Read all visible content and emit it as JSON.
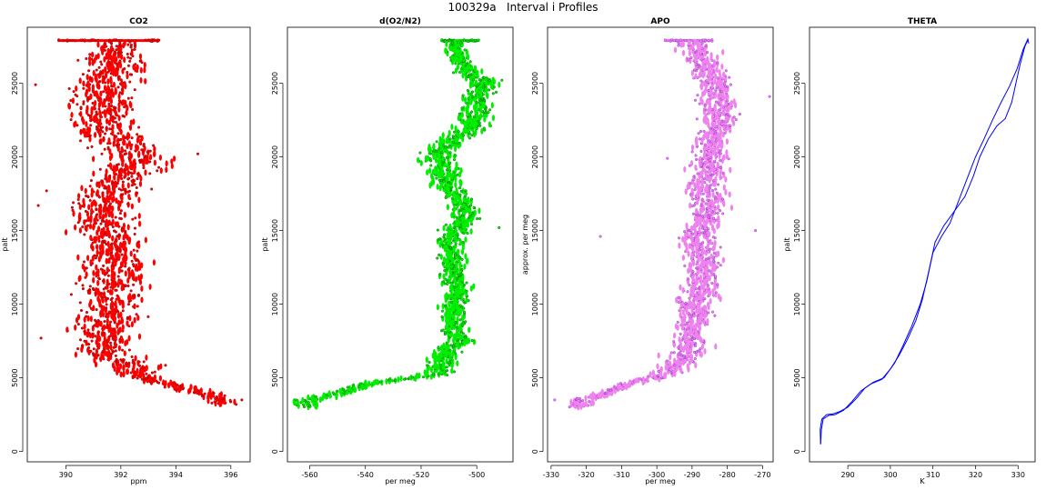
{
  "title": "100329a   Interval i Profiles",
  "chart_data": [
    {
      "type": "scatter",
      "title": "CO2",
      "xlabel": "ppm",
      "ylabel": "palt",
      "xlim": [
        388.6,
        396.7
      ],
      "ylim": [
        -700,
        28800
      ],
      "xticks": [
        390,
        392,
        394,
        396
      ],
      "yticks": [
        0,
        5000,
        10000,
        15000,
        20000,
        25000
      ],
      "color": "#ff0000",
      "outline": "#8b0000",
      "series": [
        {
          "profile": [
            [
              3200,
              395.8
            ],
            [
              3600,
              395.6
            ],
            [
              4000,
              395.0
            ],
            [
              4300,
              394.2
            ],
            [
              4700,
              393.4
            ],
            [
              5200,
              392.6
            ],
            [
              6000,
              392.0
            ],
            [
              7000,
              391.4
            ],
            [
              8000,
              391.3
            ],
            [
              9000,
              391.6
            ],
            [
              10000,
              391.7
            ],
            [
              11000,
              391.6
            ],
            [
              12000,
              391.6
            ],
            [
              13000,
              391.8
            ],
            [
              14000,
              391.7
            ],
            [
              15000,
              391.5
            ],
            [
              16000,
              391.3
            ],
            [
              17000,
              391.4
            ],
            [
              18000,
              391.9
            ],
            [
              19000,
              392.2
            ],
            [
              19800,
              392.7
            ],
            [
              20500,
              392.3
            ],
            [
              21200,
              391.9
            ],
            [
              22000,
              391.4
            ],
            [
              23000,
              391.2
            ],
            [
              24000,
              391.3
            ],
            [
              25000,
              391.5
            ],
            [
              26000,
              391.7
            ],
            [
              27000,
              391.8
            ],
            [
              27800,
              391.8
            ]
          ],
          "scatter": [
            [
              [
                3200,
                5200
              ],
              0.45
            ],
            [
              [
                5200,
                19000
              ],
              1.0
            ],
            [
              [
                19000,
                21500
              ],
              1.1
            ],
            [
              [
                21500,
                27000
              ],
              1.0
            ],
            [
              [
                27000,
                27800
              ],
              0.6
            ]
          ],
          "top": {
            "y": 27900,
            "x": [
              389.7,
              393.4
            ]
          },
          "outliers": [
            [
              388.9,
              24900
            ],
            [
              389.0,
              16700
            ],
            [
              389.3,
              17700
            ],
            [
              389.1,
              7700
            ],
            [
              396.4,
              3500
            ],
            [
              394.8,
              20200
            ]
          ]
        }
      ]
    },
    {
      "type": "scatter",
      "title": "d(O2/N2)",
      "xlabel": "per meg",
      "ylabel": "palt",
      "xlim": [
        -568,
        -487
      ],
      "ylim": [
        -700,
        28800
      ],
      "xticks": [
        -560,
        -540,
        -520,
        -500
      ],
      "yticks": [
        0,
        5000,
        10000,
        15000,
        20000,
        25000
      ],
      "color": "#00ee00",
      "outline": "#006400",
      "series": [
        {
          "profile": [
            [
              3000,
              -560
            ],
            [
              3400,
              -562
            ],
            [
              3700,
              -556
            ],
            [
              4100,
              -546
            ],
            [
              4500,
              -542
            ],
            [
              4900,
              -528
            ],
            [
              5200,
              -514
            ],
            [
              6000,
              -512
            ],
            [
              7000,
              -511
            ],
            [
              7500,
              -504
            ],
            [
              8000,
              -508
            ],
            [
              9000,
              -509
            ],
            [
              10000,
              -508
            ],
            [
              11000,
              -507
            ],
            [
              12000,
              -508
            ],
            [
              13000,
              -508
            ],
            [
              14000,
              -510
            ],
            [
              15000,
              -508
            ],
            [
              16000,
              -504
            ],
            [
              17000,
              -505
            ],
            [
              18000,
              -510
            ],
            [
              19000,
              -512
            ],
            [
              20000,
              -514
            ],
            [
              21000,
              -510
            ],
            [
              22000,
              -502
            ],
            [
              23000,
              -500
            ],
            [
              24000,
              -501
            ],
            [
              25000,
              -497
            ],
            [
              26000,
              -504
            ],
            [
              27000,
              -507
            ],
            [
              27800,
              -508
            ]
          ],
          "scatter": [
            [
              [
                3000,
                5200
              ],
              4
            ],
            [
              [
                5200,
                18000
              ],
              4
            ],
            [
              [
                18000,
                21000
              ],
              5
            ],
            [
              [
                21000,
                26000
              ],
              5
            ],
            [
              [
                26000,
                27800
              ],
              3
            ]
          ],
          "top": {
            "y": 27900,
            "x": [
              -513,
              -499
            ]
          },
          "outliers": [
            [
              -565,
              3500
            ],
            [
              -526,
              4900
            ],
            [
              -492,
              15200
            ],
            [
              -491,
              25200
            ]
          ]
        }
      ]
    },
    {
      "type": "scatter",
      "title": "APO",
      "xlabel": "per meg",
      "ylabel": "approx. per meg",
      "xlim": [
        -331,
        -267
      ],
      "ylim": [
        -700,
        28800
      ],
      "xticks": [
        -330,
        -320,
        -310,
        -300,
        -290,
        -280,
        -270
      ],
      "yticks": [
        0,
        5000,
        10000,
        15000,
        20000,
        25000
      ],
      "color": "#ee82ee",
      "outline": "#9932cc",
      "series": [
        {
          "profile": [
            [
              3000,
              -322
            ],
            [
              3500,
              -322
            ],
            [
              3800,
              -316
            ],
            [
              4200,
              -312
            ],
            [
              4600,
              -308
            ],
            [
              5200,
              -297
            ],
            [
              6000,
              -293
            ],
            [
              7000,
              -291
            ],
            [
              8000,
              -290
            ],
            [
              9000,
              -289
            ],
            [
              10000,
              -289
            ],
            [
              11000,
              -288
            ],
            [
              12000,
              -287
            ],
            [
              13000,
              -287
            ],
            [
              14000,
              -288
            ],
            [
              15000,
              -288
            ],
            [
              16000,
              -285
            ],
            [
              17000,
              -285
            ],
            [
              18000,
              -287
            ],
            [
              19000,
              -286
            ],
            [
              20000,
              -285
            ],
            [
              21000,
              -284
            ],
            [
              22000,
              -283
            ],
            [
              23000,
              -282
            ],
            [
              24000,
              -283
            ],
            [
              25000,
              -283
            ],
            [
              26000,
              -286
            ],
            [
              27000,
              -288
            ],
            [
              27800,
              -290
            ]
          ],
          "scatter": [
            [
              [
                3000,
                5200
              ],
              2.5
            ],
            [
              [
                5200,
                28000
              ],
              4.5
            ]
          ],
          "top": {
            "y": 27900,
            "x": [
              -298,
              -284
            ]
          },
          "outliers": [
            [
              -329,
              3500
            ],
            [
              -316,
              14600
            ],
            [
              -268,
              24100
            ],
            [
              -272,
              15000
            ],
            [
              -297,
              19900
            ]
          ]
        }
      ]
    },
    {
      "type": "line",
      "title": "THETA",
      "xlabel": "K",
      "ylabel": "palt",
      "xlim": [
        281,
        334
      ],
      "ylim": [
        -700,
        28800
      ],
      "xticks": [
        290,
        300,
        310,
        320,
        330
      ],
      "yticks": [
        0,
        5000,
        10000,
        15000,
        20000,
        25000
      ],
      "color": "#0000ff",
      "series": [
        {
          "name": "",
          "points": [
            [
              283.6,
              500
            ],
            [
              283.5,
              1500
            ],
            [
              283.9,
              2200
            ],
            [
              285,
              2500
            ],
            [
              286.5,
              2550
            ],
            [
              288,
              2700
            ],
            [
              290,
              3000
            ],
            [
              292,
              3600
            ],
            [
              294,
              4300
            ],
            [
              296,
              4700
            ],
            [
              298.5,
              5000
            ],
            [
              301,
              6000
            ],
            [
              303,
              7200
            ],
            [
              305,
              8500
            ],
            [
              307,
              10000
            ],
            [
              308.5,
              11500
            ],
            [
              310,
              13500
            ],
            [
              312,
              14600
            ],
            [
              314,
              15500
            ],
            [
              316,
              17000
            ],
            [
              318,
              18500
            ],
            [
              320,
              20000
            ],
            [
              322,
              21200
            ],
            [
              324,
              22500
            ],
            [
              326,
              23700
            ],
            [
              328,
              24800
            ],
            [
              329.8,
              26000
            ],
            [
              331.2,
              27300
            ],
            [
              332.3,
              28000
            ],
            [
              332.5,
              27700
            ]
          ]
        },
        {
          "name": "",
          "points": [
            [
              283.6,
              500
            ],
            [
              283.8,
              1500
            ],
            [
              284.2,
              2200
            ],
            [
              285.5,
              2450
            ],
            [
              287,
              2500
            ],
            [
              289,
              2800
            ],
            [
              291,
              3400
            ],
            [
              293,
              4100
            ],
            [
              295.5,
              4600
            ],
            [
              298,
              4900
            ],
            [
              300,
              5600
            ],
            [
              302,
              6500
            ],
            [
              304,
              7600
            ],
            [
              306,
              8900
            ],
            [
              307.5,
              10300
            ],
            [
              309,
              12200
            ],
            [
              310.5,
              14200
            ],
            [
              312.5,
              15300
            ],
            [
              315,
              16300
            ],
            [
              317.5,
              17300
            ],
            [
              319.5,
              18700
            ],
            [
              321,
              20000
            ],
            [
              323,
              21200
            ],
            [
              325,
              22100
            ],
            [
              327,
              22600
            ],
            [
              328.5,
              23700
            ],
            [
              329.5,
              25000
            ],
            [
              330.5,
              26300
            ],
            [
              331.6,
              27500
            ],
            [
              332.4,
              28000
            ]
          ]
        }
      ]
    }
  ]
}
